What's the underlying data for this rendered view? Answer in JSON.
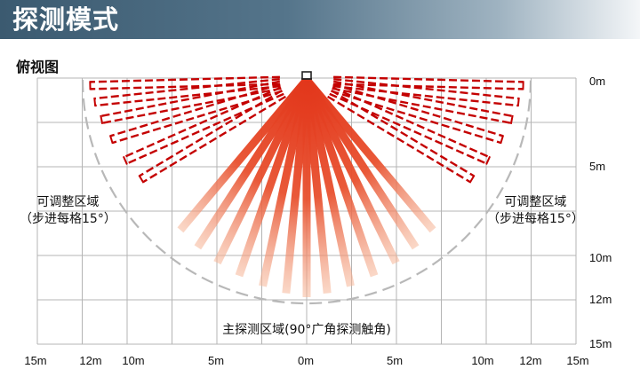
{
  "header": {
    "title": "探测模式"
  },
  "view": {
    "label": "俯视图"
  },
  "zones": {
    "adjustable_line1": "可调整区域",
    "adjustable_line2": "（步进每格15°）",
    "main": "主探测区域(90°广角探测触角)"
  },
  "y_ticks": [
    "0m",
    "5m",
    "10m",
    "12m",
    "15m"
  ],
  "x_ticks": [
    "15m",
    "12m",
    "10m",
    "5m",
    "0m",
    "5m",
    "10m",
    "12m",
    "15m"
  ],
  "colors": {
    "beam_solid": "#e2361b",
    "beam_dashed": "#c40000",
    "grid": "#b4b4b4",
    "boundary": "#b8b8b8"
  }
}
